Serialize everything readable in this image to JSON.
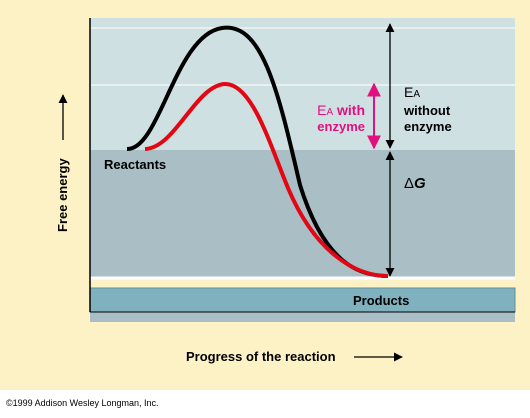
{
  "labels": {
    "y_axis": "Free energy",
    "x_axis": "Progress of the reaction",
    "reactants": "Reactants",
    "products": "Products",
    "ea_with_prefix": "E",
    "ea_with_sub": "A",
    "ea_with_suffix": " with",
    "ea_with_line2": "enzyme",
    "ea_without_prefix": "E",
    "ea_without_sub": "A",
    "ea_without_line2": "without",
    "ea_without_line3": "enzyme",
    "delta_g_symbol": "Δ",
    "delta_g_letter": "G",
    "copyright": "©1999 Addison Wesley Longman, Inc."
  },
  "colors": {
    "outer_background": "#fdf1c6",
    "upper_band": "#cfe0e2",
    "middle_band": "#a9bfc5",
    "products_band": "#7fb1be",
    "without_enzyme_curve": "#000000",
    "with_enzyme_curve": "#e30613",
    "ea_with_enzyme": "#e0117f",
    "arrows": "#000000"
  },
  "curves": [
    {
      "name": "without enzyme",
      "color": "#000000"
    },
    {
      "name": "with enzyme",
      "color": "#e30613"
    }
  ]
}
